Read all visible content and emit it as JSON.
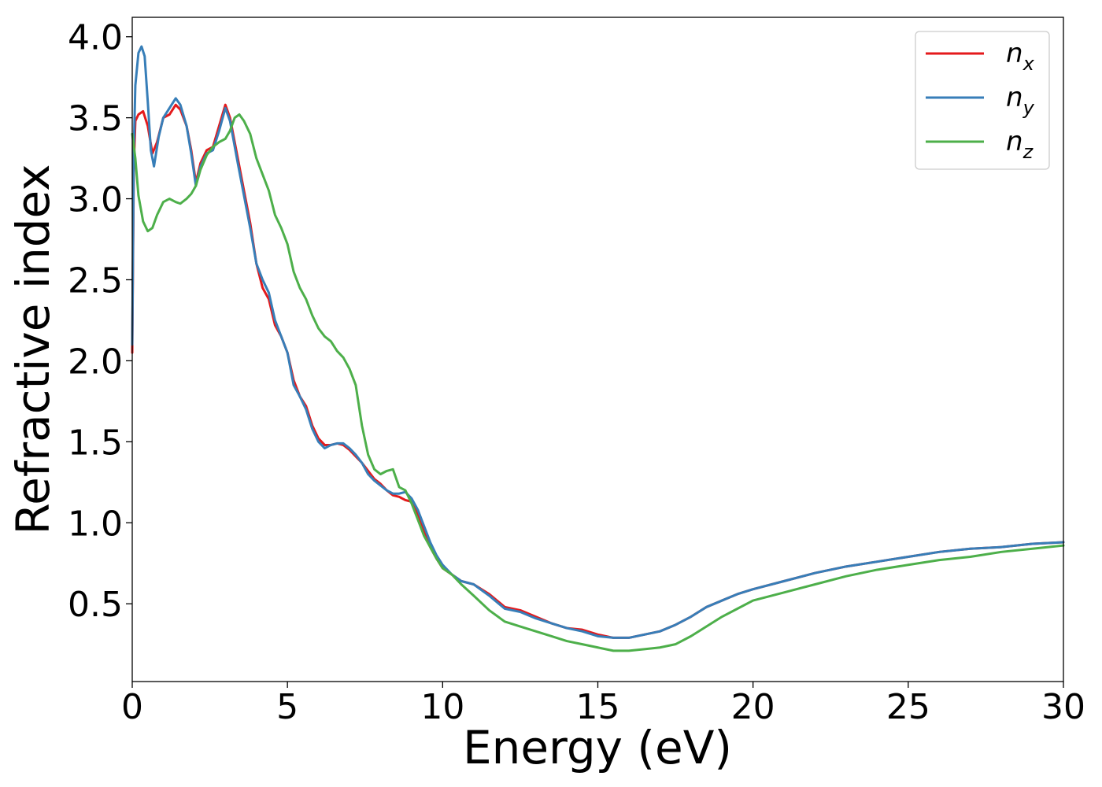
{
  "chart_data": {
    "type": "line",
    "title": "",
    "xlabel": "Energy (eV)",
    "ylabel": "Refractive index",
    "xlim": [
      0,
      30
    ],
    "ylim": [
      0.02,
      4.12
    ],
    "xticks": [
      0,
      5,
      10,
      15,
      20,
      25,
      30
    ],
    "xtick_labels": [
      "0",
      "5",
      "10",
      "15",
      "20",
      "25",
      "30"
    ],
    "yticks": [
      0.5,
      1.0,
      1.5,
      2.0,
      2.5,
      3.0,
      3.5,
      4.0
    ],
    "ytick_labels": [
      "0.5",
      "1.0",
      "1.5",
      "2.0",
      "2.5",
      "3.0",
      "3.5",
      "4.0"
    ],
    "grid": false,
    "legend_position": "top-right",
    "series": [
      {
        "name": "n_x",
        "label_main": "n",
        "label_sub": "x",
        "color": "#e41a1c",
        "x": [
          0,
          0.05,
          0.1,
          0.2,
          0.35,
          0.5,
          0.65,
          0.8,
          1.0,
          1.2,
          1.4,
          1.55,
          1.75,
          1.9,
          2.05,
          2.2,
          2.4,
          2.6,
          2.8,
          3.0,
          3.15,
          3.4,
          3.6,
          3.8,
          4.0,
          4.2,
          4.4,
          4.6,
          4.8,
          5.0,
          5.2,
          5.4,
          5.6,
          5.8,
          6.0,
          6.2,
          6.4,
          6.6,
          6.8,
          7.0,
          7.2,
          7.4,
          7.6,
          7.8,
          8.0,
          8.2,
          8.4,
          8.6,
          8.8,
          9.0,
          9.2,
          9.4,
          9.6,
          9.8,
          10.0,
          10.3,
          10.6,
          11.0,
          11.5,
          12.0,
          12.5,
          13.0,
          13.5,
          14.0,
          14.5,
          15.0,
          15.5,
          16.0,
          16.5,
          17.0,
          17.5,
          18.0,
          18.5,
          19.0,
          19.5,
          20.0,
          21.0,
          22.0,
          23.0,
          24.0,
          25.0,
          26.0,
          27.0,
          28.0,
          29.0,
          30.0
        ],
        "values": [
          2.05,
          3.2,
          3.48,
          3.52,
          3.54,
          3.45,
          3.28,
          3.35,
          3.5,
          3.52,
          3.58,
          3.55,
          3.45,
          3.3,
          3.1,
          3.22,
          3.3,
          3.32,
          3.45,
          3.58,
          3.5,
          3.25,
          3.05,
          2.85,
          2.6,
          2.45,
          2.38,
          2.22,
          2.15,
          2.05,
          1.88,
          1.78,
          1.72,
          1.6,
          1.52,
          1.48,
          1.48,
          1.49,
          1.48,
          1.45,
          1.41,
          1.37,
          1.32,
          1.27,
          1.24,
          1.2,
          1.17,
          1.16,
          1.14,
          1.13,
          1.05,
          0.95,
          0.85,
          0.78,
          0.72,
          0.68,
          0.64,
          0.62,
          0.56,
          0.48,
          0.46,
          0.42,
          0.38,
          0.35,
          0.34,
          0.31,
          0.29,
          0.29,
          0.31,
          0.33,
          0.37,
          0.42,
          0.48,
          0.52,
          0.56,
          0.59,
          0.64,
          0.69,
          0.73,
          0.76,
          0.79,
          0.82,
          0.84,
          0.85,
          0.87,
          0.88
        ]
      },
      {
        "name": "n_y",
        "label_main": "n",
        "label_sub": "y",
        "color": "#377eb8",
        "x": [
          0,
          0.05,
          0.1,
          0.2,
          0.3,
          0.4,
          0.5,
          0.6,
          0.7,
          0.85,
          1.0,
          1.2,
          1.4,
          1.55,
          1.75,
          1.9,
          2.05,
          2.2,
          2.4,
          2.6,
          2.8,
          3.0,
          3.15,
          3.4,
          3.6,
          3.8,
          4.0,
          4.2,
          4.4,
          4.6,
          4.8,
          5.0,
          5.2,
          5.4,
          5.6,
          5.8,
          6.0,
          6.2,
          6.4,
          6.6,
          6.8,
          7.0,
          7.2,
          7.4,
          7.6,
          7.8,
          8.0,
          8.2,
          8.4,
          8.6,
          8.8,
          9.0,
          9.2,
          9.4,
          9.6,
          9.8,
          10.0,
          10.3,
          10.6,
          11.0,
          11.5,
          12.0,
          12.5,
          13.0,
          13.5,
          14.0,
          14.5,
          15.0,
          15.5,
          16.0,
          16.5,
          17.0,
          17.5,
          18.0,
          18.5,
          19.0,
          19.5,
          20.0,
          21.0,
          22.0,
          23.0,
          24.0,
          25.0,
          26.0,
          27.0,
          28.0,
          29.0,
          30.0
        ],
        "values": [
          2.1,
          3.3,
          3.7,
          3.9,
          3.94,
          3.88,
          3.6,
          3.3,
          3.2,
          3.38,
          3.5,
          3.56,
          3.62,
          3.58,
          3.45,
          3.28,
          3.08,
          3.2,
          3.28,
          3.3,
          3.42,
          3.56,
          3.48,
          3.22,
          3.02,
          2.82,
          2.6,
          2.5,
          2.42,
          2.25,
          2.15,
          2.05,
          1.85,
          1.78,
          1.7,
          1.58,
          1.5,
          1.46,
          1.48,
          1.49,
          1.49,
          1.46,
          1.42,
          1.37,
          1.3,
          1.26,
          1.23,
          1.2,
          1.18,
          1.18,
          1.19,
          1.15,
          1.08,
          0.98,
          0.88,
          0.8,
          0.74,
          0.68,
          0.64,
          0.62,
          0.55,
          0.47,
          0.45,
          0.41,
          0.38,
          0.35,
          0.33,
          0.3,
          0.29,
          0.29,
          0.31,
          0.33,
          0.37,
          0.42,
          0.48,
          0.52,
          0.56,
          0.59,
          0.64,
          0.69,
          0.73,
          0.76,
          0.79,
          0.82,
          0.84,
          0.85,
          0.87,
          0.88
        ]
      },
      {
        "name": "n_z",
        "label_main": "n",
        "label_sub": "z",
        "color": "#4daf4a",
        "x": [
          0,
          0.1,
          0.2,
          0.35,
          0.5,
          0.65,
          0.8,
          1.0,
          1.2,
          1.4,
          1.55,
          1.75,
          1.9,
          2.05,
          2.2,
          2.4,
          2.6,
          2.8,
          3.0,
          3.15,
          3.3,
          3.45,
          3.6,
          3.8,
          4.0,
          4.2,
          4.4,
          4.6,
          4.8,
          5.0,
          5.2,
          5.4,
          5.6,
          5.8,
          6.0,
          6.2,
          6.4,
          6.6,
          6.8,
          7.0,
          7.2,
          7.4,
          7.6,
          7.8,
          8.0,
          8.2,
          8.4,
          8.6,
          8.8,
          9.0,
          9.2,
          9.4,
          9.6,
          9.8,
          10.0,
          10.3,
          10.6,
          11.0,
          11.5,
          12.0,
          12.5,
          13.0,
          13.5,
          14.0,
          14.5,
          15.0,
          15.5,
          16.0,
          16.5,
          17.0,
          17.5,
          18.0,
          18.5,
          19.0,
          19.5,
          20.0,
          21.0,
          22.0,
          23.0,
          24.0,
          25.0,
          26.0,
          27.0,
          28.0,
          29.0,
          30.0
        ],
        "values": [
          3.4,
          3.25,
          3.02,
          2.86,
          2.8,
          2.82,
          2.9,
          2.98,
          3.0,
          2.98,
          2.97,
          3.0,
          3.03,
          3.08,
          3.18,
          3.27,
          3.32,
          3.35,
          3.37,
          3.42,
          3.5,
          3.52,
          3.48,
          3.4,
          3.25,
          3.15,
          3.05,
          2.9,
          2.82,
          2.72,
          2.55,
          2.45,
          2.38,
          2.28,
          2.2,
          2.15,
          2.12,
          2.06,
          2.02,
          1.95,
          1.85,
          1.6,
          1.42,
          1.33,
          1.3,
          1.32,
          1.33,
          1.22,
          1.2,
          1.12,
          1.02,
          0.92,
          0.85,
          0.78,
          0.72,
          0.68,
          0.62,
          0.55,
          0.46,
          0.39,
          0.36,
          0.33,
          0.3,
          0.27,
          0.25,
          0.23,
          0.21,
          0.21,
          0.22,
          0.23,
          0.25,
          0.3,
          0.36,
          0.42,
          0.47,
          0.52,
          0.57,
          0.62,
          0.67,
          0.71,
          0.74,
          0.77,
          0.79,
          0.82,
          0.84,
          0.86
        ]
      }
    ]
  }
}
